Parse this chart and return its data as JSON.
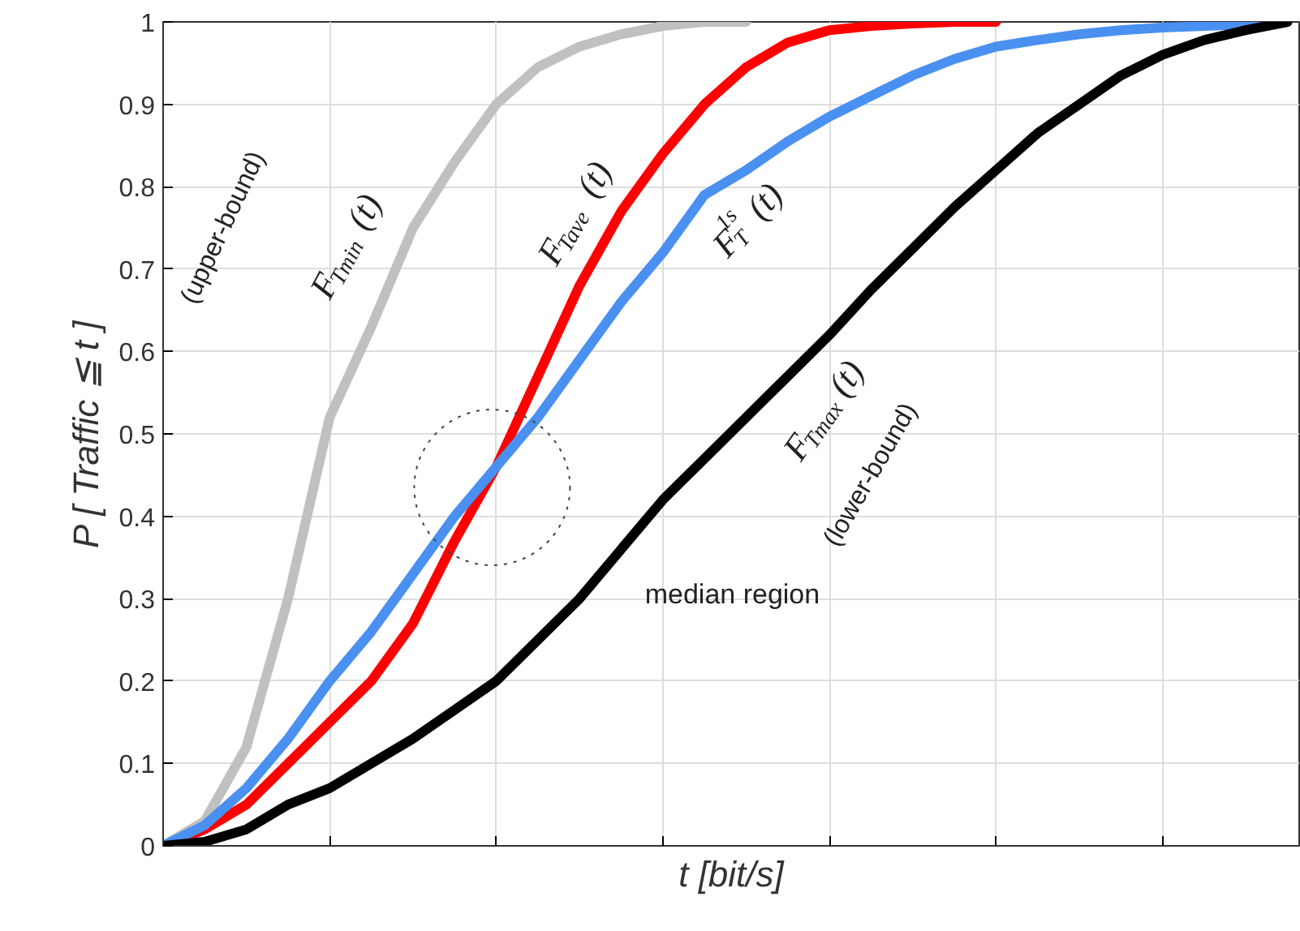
{
  "chart_data": {
    "type": "line",
    "xlabel": "t [bit/s]",
    "ylabel": "P [ Traffic ≦ t ]",
    "categories": [
      null,
      null,
      null,
      null,
      null,
      null,
      null,
      null,
      null,
      null,
      null,
      null,
      null,
      null,
      null,
      null,
      null,
      null,
      null,
      null,
      null,
      null,
      null,
      null,
      null,
      null,
      null,
      null
    ],
    "ylim": [
      0,
      1
    ],
    "yticks": [
      0,
      0.1,
      0.2,
      0.3,
      0.4,
      0.5,
      0.6,
      0.7,
      0.8,
      0.9,
      1
    ],
    "tick_labels": "y",
    "grid": true,
    "marker": "none",
    "line_style": "solid",
    "series": [
      {
        "name": "F$_{Tmin}$(t)",
        "color": "#c0c0c0",
        "values": [
          0,
          0.03,
          0.12,
          0.3,
          0.52,
          0.63,
          0.75,
          0.83,
          0.9,
          0.945,
          0.97,
          0.985,
          0.995,
          1,
          1,
          null,
          null,
          null,
          null,
          null,
          null,
          null,
          null,
          null,
          null,
          null,
          null,
          null
        ]
      },
      {
        "name": "F$_{Tave}$(t)",
        "color": "#ff0000",
        "values": [
          0,
          0.02,
          0.05,
          0.1,
          0.15,
          0.2,
          0.27,
          0.37,
          0.46,
          0.57,
          0.68,
          0.77,
          0.84,
          0.9,
          0.945,
          0.975,
          0.99,
          0.995,
          0.998,
          1,
          1,
          null,
          null,
          null,
          null,
          null,
          null,
          null
        ]
      },
      {
        "name": "F$_{T}$$^{1s}$(t)",
        "color": "#4a90f0",
        "values": [
          0,
          0.025,
          0.07,
          0.13,
          0.2,
          0.26,
          0.33,
          0.4,
          0.46,
          0.52,
          0.59,
          0.66,
          0.72,
          0.79,
          0.82,
          0.855,
          0.885,
          0.91,
          0.935,
          0.955,
          0.97,
          0.978,
          0.985,
          0.99,
          0.993,
          0.995,
          0.997,
          1
        ]
      },
      {
        "name": "F$_{Tmax}$(t)",
        "color": "#000000",
        "values": [
          0,
          0.005,
          0.02,
          0.05,
          0.07,
          0.1,
          0.13,
          0.165,
          0.2,
          0.25,
          0.3,
          0.36,
          0.42,
          0.47,
          0.52,
          0.57,
          0.62,
          0.675,
          0.725,
          0.775,
          0.82,
          0.865,
          0.9,
          0.935,
          0.96,
          0.978,
          0.99,
          1
        ]
      }
    ],
    "annotations": [
      "(upper-bound)",
      "(lower-bound)",
      "median region"
    ]
  }
}
